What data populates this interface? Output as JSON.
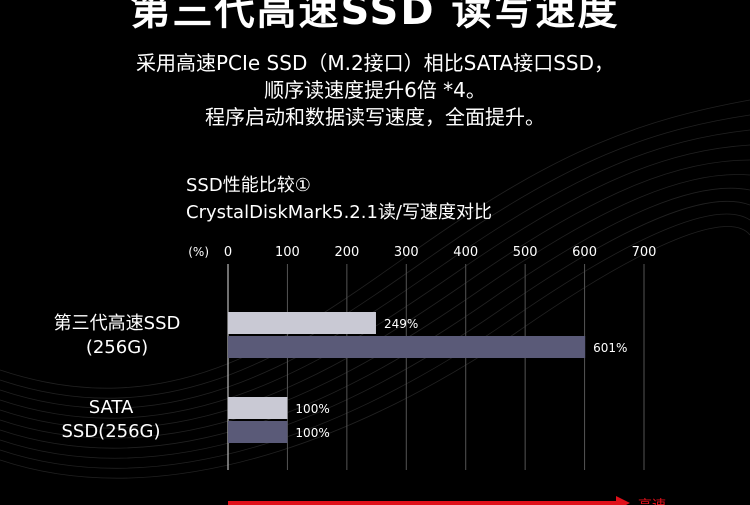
{
  "header": {
    "title": "第三代高速SSD 读写速度",
    "lines": [
      "采用高速PCIe SSD（M.2接口）相比SATA接口SSD，",
      "顺序读速度提升6倍 *4。",
      "程序启动和数据读写速度，全面提升。"
    ]
  },
  "chart_head": {
    "line1": "SSD性能比较①",
    "line2": "CrystalDiskMark5.2.1读/写速度对比"
  },
  "chart_data": {
    "type": "bar",
    "orientation": "horizontal",
    "unit_label": "(%)",
    "xlim": [
      0,
      700
    ],
    "ticks": [
      "0",
      "100",
      "200",
      "300",
      "400",
      "500",
      "600",
      "700"
    ],
    "tick_values": [
      0,
      100,
      200,
      300,
      400,
      500,
      600,
      700
    ],
    "groups": [
      {
        "label_lines": [
          "第三代高速SSD",
          "(256G)"
        ],
        "bars": [
          {
            "value": 249,
            "label": "249%",
            "color": "#c9c9d4"
          },
          {
            "value": 601,
            "label": "601%",
            "color": "#5a5a78"
          }
        ]
      },
      {
        "label_lines": [
          "SATA",
          "SSD(256G)"
        ],
        "bars": [
          {
            "value": 100,
            "label": "100%",
            "color": "#c9c9d4"
          },
          {
            "value": 100,
            "label": "100%",
            "color": "#5a5a78"
          }
        ]
      }
    ],
    "arrow_label": "高速",
    "grid": true,
    "accent_color": "#e0101a"
  }
}
